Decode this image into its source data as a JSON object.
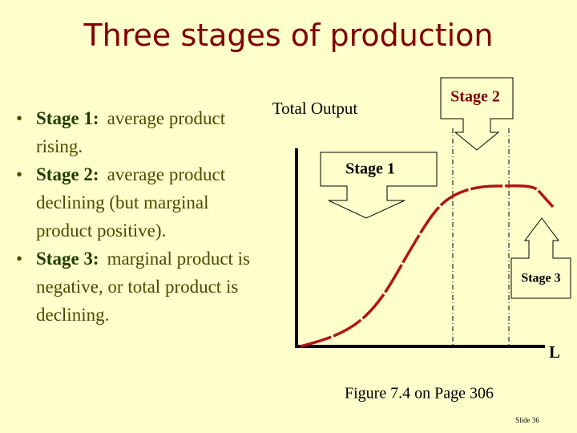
{
  "title": "Three stages of production",
  "bullets": [
    {
      "label": "Stage 1:",
      "text": "average product rising."
    },
    {
      "label": "Stage 2:",
      "text": "average product declining (but marginal product positive)."
    },
    {
      "label": "Stage 3:",
      "text": "marginal product is negative, or total product is declining."
    }
  ],
  "diagram": {
    "y_axis_label": "Total Output",
    "x_axis_label": "L",
    "callouts": [
      "Stage 1",
      "Stage 2",
      "Stage 3"
    ]
  },
  "caption": "Figure 7.4 on Page 306",
  "slide_number": "Slide 36"
}
